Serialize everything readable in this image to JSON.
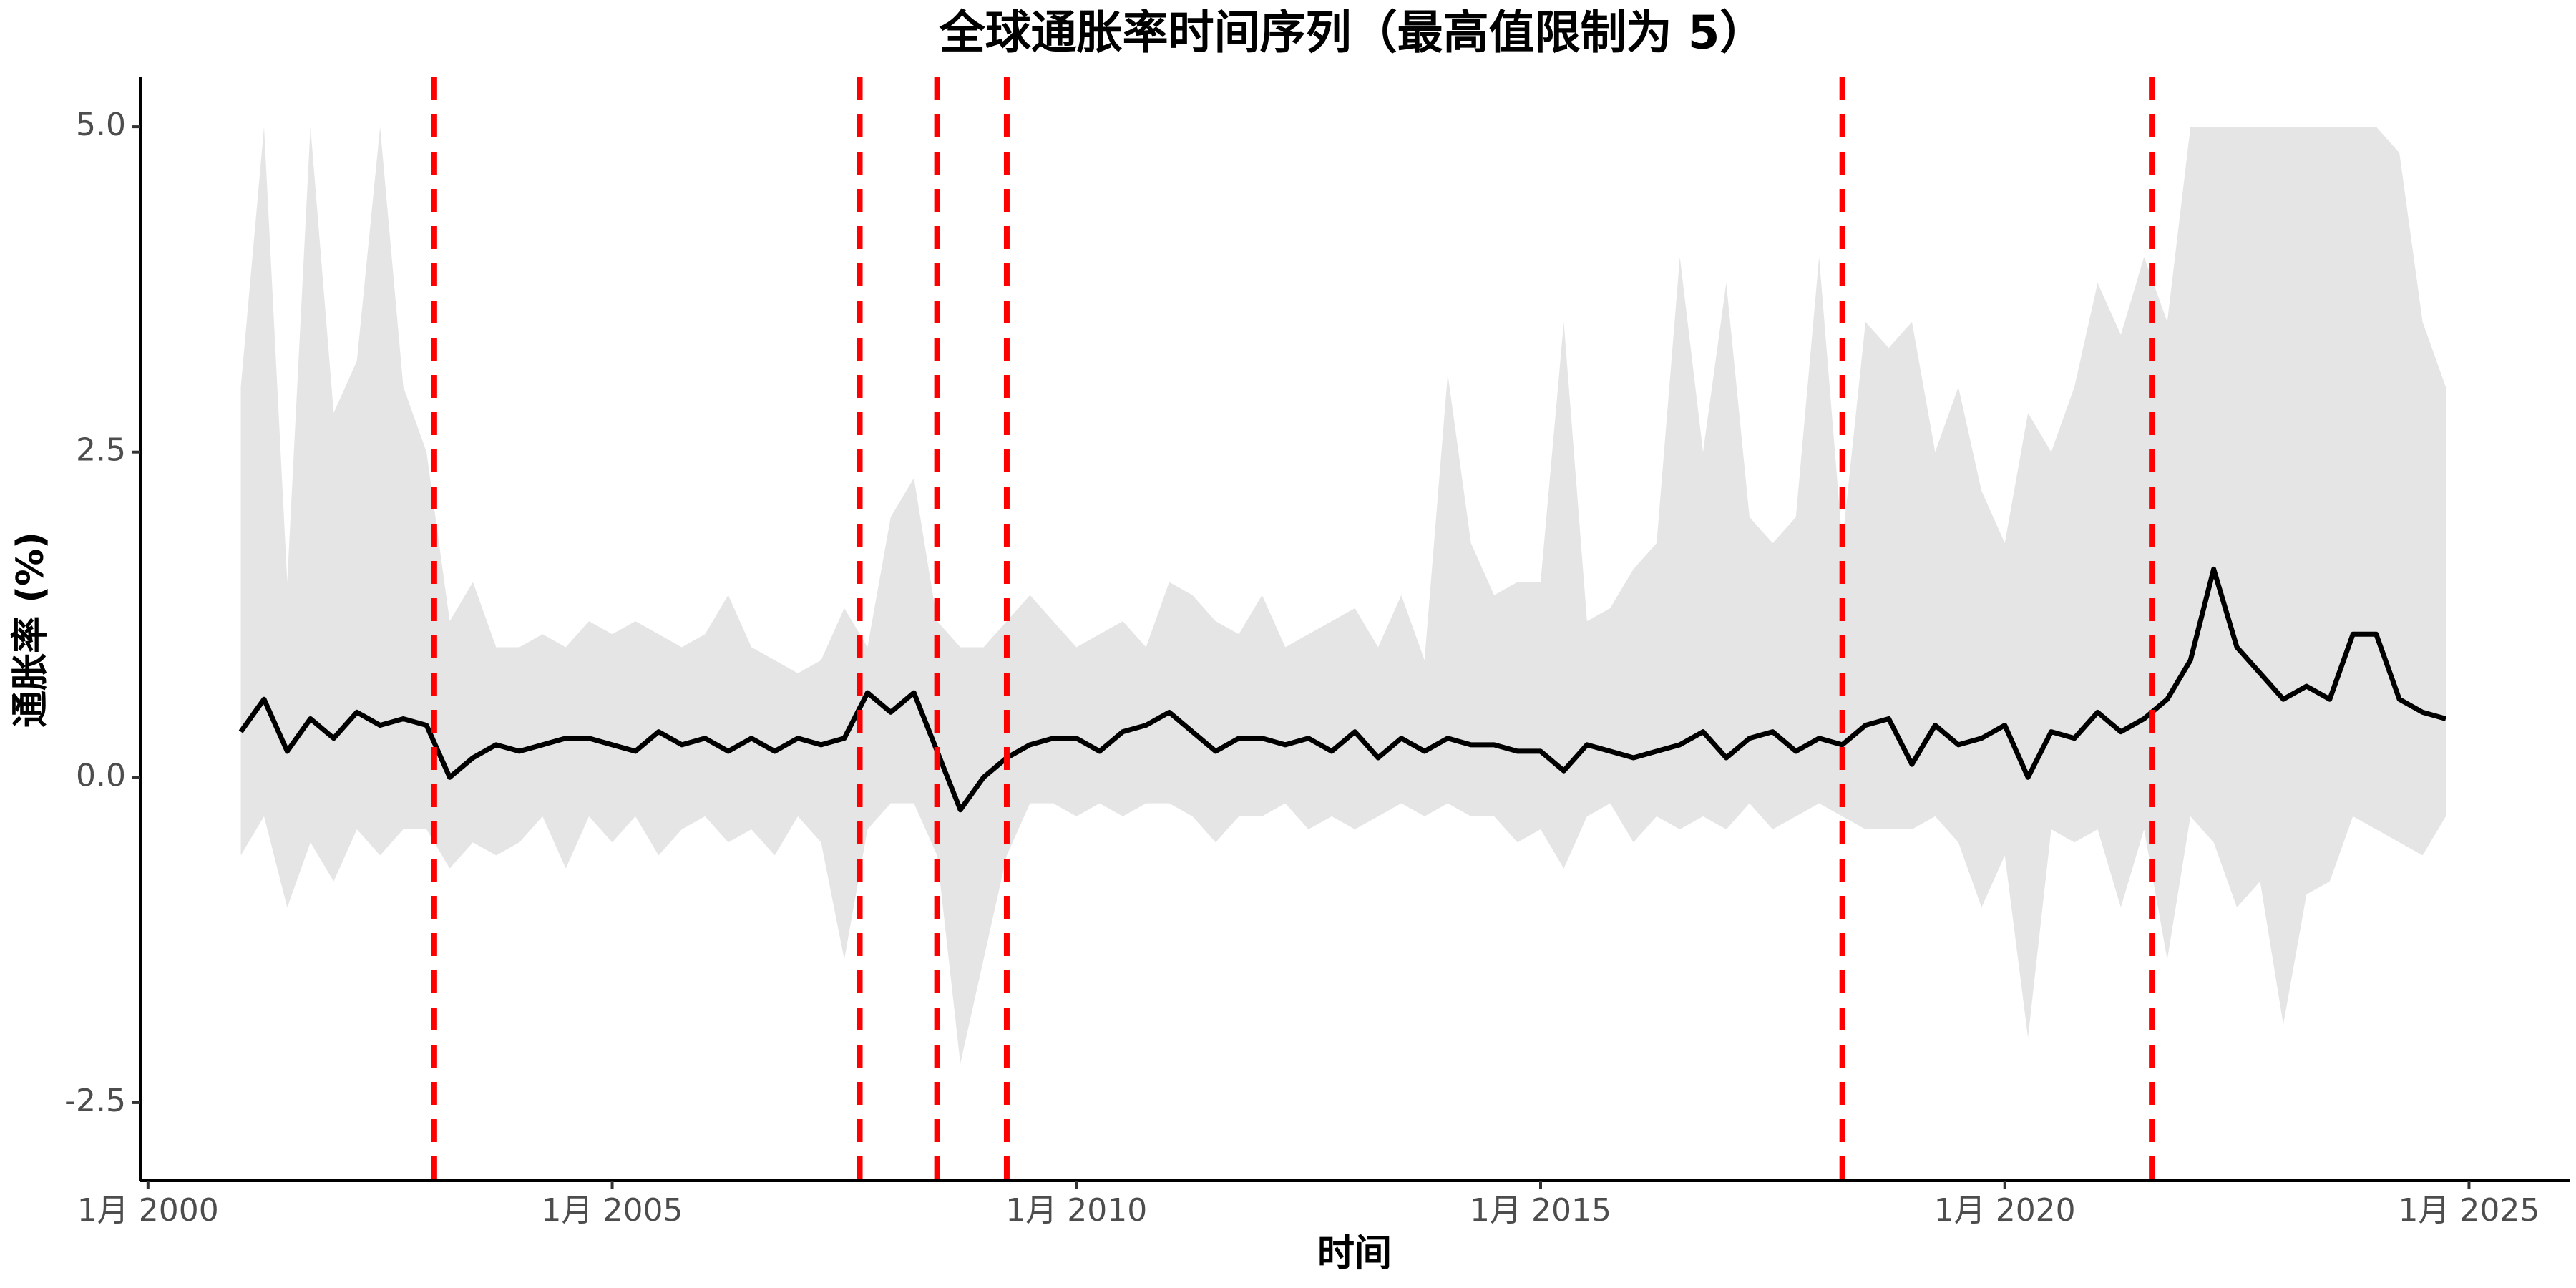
{
  "chart_data": {
    "type": "line",
    "title": "全球通胀率时间序列（最高值限制为 5）",
    "x_label": "时间",
    "y_label": "通胀率 (%)",
    "xlim": [
      "1999-12",
      "2026-02"
    ],
    "ylim": [
      -3.1,
      5.38
    ],
    "xticks": [
      {
        "value": "2000-01",
        "label": "1月 2000"
      },
      {
        "value": "2005-01",
        "label": "1月 2005"
      },
      {
        "value": "2010-01",
        "label": "1月 2010"
      },
      {
        "value": "2015-01",
        "label": "1月 2015"
      },
      {
        "value": "2020-01",
        "label": "1月 2020"
      },
      {
        "value": "2025-01",
        "label": "1月 2025"
      }
    ],
    "yticks": [
      -2.5,
      {
        "value": 0,
        "label": "0.0"
      },
      2.5,
      {
        "value": 5,
        "label": "5.0"
      }
    ],
    "grid": false,
    "x": [
      "2001-01",
      "2001-04",
      "2001-07",
      "2001-10",
      "2002-01",
      "2002-04",
      "2002-07",
      "2002-10",
      "2003-01",
      "2003-04",
      "2003-07",
      "2003-10",
      "2004-01",
      "2004-04",
      "2004-07",
      "2004-10",
      "2005-01",
      "2005-04",
      "2005-07",
      "2005-10",
      "2006-01",
      "2006-04",
      "2006-07",
      "2006-10",
      "2007-01",
      "2007-04",
      "2007-07",
      "2007-10",
      "2008-01",
      "2008-04",
      "2008-07",
      "2008-10",
      "2009-01",
      "2009-04",
      "2009-07",
      "2009-10",
      "2010-01",
      "2010-04",
      "2010-07",
      "2010-10",
      "2011-01",
      "2011-04",
      "2011-07",
      "2011-10",
      "2012-01",
      "2012-04",
      "2012-07",
      "2012-10",
      "2013-01",
      "2013-04",
      "2013-07",
      "2013-10",
      "2014-01",
      "2014-04",
      "2014-07",
      "2014-10",
      "2015-01",
      "2015-04",
      "2015-07",
      "2015-10",
      "2016-01",
      "2016-04",
      "2016-07",
      "2016-10",
      "2017-01",
      "2017-04",
      "2017-07",
      "2017-10",
      "2018-01",
      "2018-04",
      "2018-07",
      "2018-10",
      "2019-01",
      "2019-04",
      "2019-07",
      "2019-10",
      "2020-01",
      "2020-04",
      "2020-07",
      "2020-10",
      "2021-01",
      "2021-04",
      "2021-07",
      "2021-10",
      "2022-01",
      "2022-04",
      "2022-07",
      "2022-10",
      "2023-01",
      "2023-04",
      "2023-07",
      "2023-10",
      "2024-01",
      "2024-04",
      "2024-07",
      "2024-10"
    ],
    "series": [
      {
        "color": "#000000",
        "values": [
          0.35,
          0.6,
          0.2,
          0.45,
          0.3,
          0.5,
          0.4,
          0.45,
          0.4,
          0.0,
          0.15,
          0.25,
          0.2,
          0.25,
          0.3,
          0.3,
          0.25,
          0.2,
          0.35,
          0.25,
          0.3,
          0.2,
          0.3,
          0.2,
          0.3,
          0.25,
          0.3,
          0.65,
          0.5,
          0.65,
          0.2,
          -0.25,
          0.0,
          0.15,
          0.25,
          0.3,
          0.3,
          0.2,
          0.35,
          0.4,
          0.5,
          0.35,
          0.2,
          0.3,
          0.3,
          0.25,
          0.3,
          0.2,
          0.35,
          0.15,
          0.3,
          0.2,
          0.3,
          0.25,
          0.25,
          0.2,
          0.2,
          0.05,
          0.25,
          0.2,
          0.15,
          0.2,
          0.25,
          0.35,
          0.15,
          0.3,
          0.35,
          0.2,
          0.3,
          0.25,
          0.4,
          0.45,
          0.1,
          0.4,
          0.25,
          0.3,
          0.4,
          0.0,
          0.35,
          0.3,
          0.5,
          0.35,
          0.45,
          0.6,
          0.9,
          1.6,
          1.0,
          0.8,
          0.6,
          0.7,
          0.6,
          1.1,
          1.1,
          0.6,
          0.5,
          0.45
        ]
      }
    ],
    "band": {
      "color": "#e5e5e5",
      "upper": [
        3.0,
        5.0,
        1.5,
        5.0,
        2.8,
        3.2,
        5.0,
        3.0,
        2.5,
        1.2,
        1.5,
        1.0,
        1.0,
        1.1,
        1.0,
        1.2,
        1.1,
        1.2,
        1.1,
        1.0,
        1.1,
        1.4,
        1.0,
        0.9,
        0.8,
        0.9,
        1.3,
        1.0,
        2.0,
        2.3,
        1.2,
        1.0,
        1.0,
        1.2,
        1.4,
        1.2,
        1.0,
        1.1,
        1.2,
        1.0,
        1.5,
        1.4,
        1.2,
        1.1,
        1.4,
        1.0,
        1.1,
        1.2,
        1.3,
        1.0,
        1.4,
        0.9,
        3.1,
        1.8,
        1.4,
        1.5,
        1.5,
        3.5,
        1.2,
        1.3,
        1.6,
        1.8,
        4.0,
        2.5,
        3.8,
        2.0,
        1.8,
        2.0,
        4.0,
        1.8,
        3.5,
        3.3,
        3.5,
        2.5,
        3.0,
        2.2,
        1.8,
        2.8,
        2.5,
        3.0,
        3.8,
        3.4,
        4.0,
        3.5,
        5.0,
        5.0,
        5.0,
        5.0,
        5.0,
        5.0,
        5.0,
        5.0,
        5.0,
        4.8,
        3.5,
        3.0
      ],
      "lower": [
        -0.6,
        -0.3,
        -1.0,
        -0.5,
        -0.8,
        -0.4,
        -0.6,
        -0.4,
        -0.4,
        -0.7,
        -0.5,
        -0.6,
        -0.5,
        -0.3,
        -0.7,
        -0.3,
        -0.5,
        -0.3,
        -0.6,
        -0.4,
        -0.3,
        -0.5,
        -0.4,
        -0.6,
        -0.3,
        -0.5,
        -1.4,
        -0.4,
        -0.2,
        -0.2,
        -0.6,
        -2.2,
        -1.4,
        -0.6,
        -0.2,
        -0.2,
        -0.3,
        -0.2,
        -0.3,
        -0.2,
        -0.2,
        -0.3,
        -0.5,
        -0.3,
        -0.3,
        -0.2,
        -0.4,
        -0.3,
        -0.4,
        -0.3,
        -0.2,
        -0.3,
        -0.2,
        -0.3,
        -0.3,
        -0.5,
        -0.4,
        -0.7,
        -0.3,
        -0.2,
        -0.5,
        -0.3,
        -0.4,
        -0.3,
        -0.4,
        -0.2,
        -0.4,
        -0.3,
        -0.2,
        -0.3,
        -0.4,
        -0.4,
        -0.4,
        -0.3,
        -0.5,
        -1.0,
        -0.6,
        -2.0,
        -0.4,
        -0.5,
        -0.4,
        -1.0,
        -0.4,
        -1.4,
        -0.3,
        -0.5,
        -1.0,
        -0.8,
        -1.9,
        -0.9,
        -0.8,
        -0.3,
        -0.4,
        -0.5,
        -0.6,
        -0.3
      ]
    },
    "vlines": {
      "color": "#ff0000",
      "x": [
        "2003-02",
        "2007-09",
        "2008-07",
        "2009-04",
        "2018-04",
        "2021-08"
      ]
    }
  }
}
